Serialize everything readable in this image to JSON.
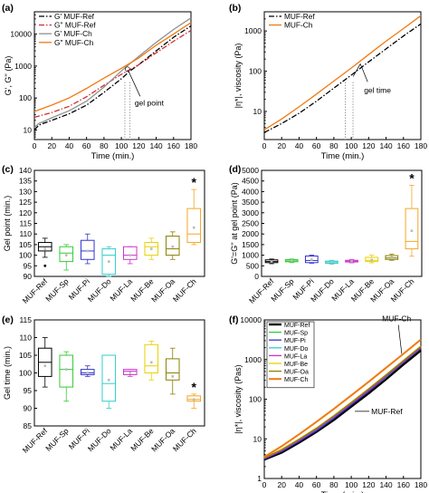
{
  "colors": {
    "ref": "#000000",
    "ref_dash": "#d03030",
    "ch": "#909090",
    "ch_orange": "#f07a10",
    "sp": "#33cc33",
    "pi": "#3333cc",
    "do": "#33cccc",
    "la": "#cc33cc",
    "be": "#e6d200",
    "oa": "#8b8000",
    "ch_box": "#f5a623"
  },
  "chart_data": [
    {
      "panel": "(a)",
      "type": "line",
      "log_y": true,
      "xlabel": "Time (min.)",
      "ylabel": "G', G'' (Pa)",
      "xlim": [
        0,
        180
      ],
      "ylim": [
        5,
        50000
      ],
      "xticks": [
        0,
        20,
        40,
        60,
        80,
        100,
        120,
        140,
        160,
        180
      ],
      "yticks": [
        {
          "v": 10,
          "label": "10"
        },
        {
          "v": 100,
          "label": "100"
        },
        {
          "v": 1000,
          "label": "1000"
        },
        {
          "v": 10000,
          "label": "10000"
        }
      ],
      "legend": "top-left",
      "annotation": "gel point",
      "vlines": [
        104,
        110
      ],
      "series": [
        {
          "name": "G' MUF-Ref",
          "style": "dashdot",
          "color": "#000000",
          "x": [
            0,
            5,
            10,
            20,
            40,
            60,
            80,
            100,
            110,
            120,
            140,
            160,
            180
          ],
          "y": [
            10,
            14,
            16,
            20,
            32,
            60,
            150,
            400,
            700,
            1100,
            3000,
            8000,
            18000
          ]
        },
        {
          "name": "G'' MUF-Ref",
          "style": "dashdot",
          "color": "#d03030",
          "x": [
            0,
            20,
            40,
            60,
            80,
            100,
            120,
            140,
            160,
            180
          ],
          "y": [
            25,
            35,
            55,
            110,
            250,
            550,
            1100,
            2600,
            6000,
            13000
          ]
        },
        {
          "name": "G' MUF-Ch",
          "style": "solid",
          "color": "#909090",
          "x": [
            0,
            5,
            10,
            20,
            40,
            60,
            80,
            100,
            110,
            120,
            140,
            160,
            180
          ],
          "y": [
            12,
            16,
            18,
            24,
            40,
            80,
            220,
            700,
            1200,
            2000,
            5500,
            14000,
            32000
          ]
        },
        {
          "name": "G'' MUF-Ch",
          "style": "solid",
          "color": "#f07a10",
          "x": [
            0,
            20,
            40,
            60,
            80,
            100,
            120,
            140,
            160,
            180
          ],
          "y": [
            38,
            60,
            100,
            200,
            420,
            850,
            1800,
            4500,
            10000,
            23000
          ]
        }
      ]
    },
    {
      "panel": "(b)",
      "type": "line",
      "log_y": true,
      "xlabel": "Time (min.)",
      "ylabel": "|η*|, viscosity (Pa)",
      "xlim": [
        0,
        180
      ],
      "ylim": [
        2,
        3000
      ],
      "xticks": [
        0,
        20,
        40,
        60,
        80,
        100,
        120,
        140,
        160,
        180
      ],
      "yticks": [
        {
          "v": 10,
          "label": "10"
        },
        {
          "v": 100,
          "label": "100"
        },
        {
          "v": 1000,
          "label": "1000"
        }
      ],
      "legend": "top-left",
      "annotation": "gel time",
      "vlines": [
        93,
        102
      ],
      "series": [
        {
          "name": "MUF-Ref",
          "style": "dashdot",
          "color": "#000000",
          "x": [
            0,
            20,
            40,
            60,
            80,
            100,
            120,
            140,
            160,
            180
          ],
          "y": [
            3,
            5,
            9,
            18,
            38,
            80,
            170,
            360,
            750,
            1500
          ]
        },
        {
          "name": "MUF-Ch",
          "style": "solid",
          "color": "#f07a10",
          "x": [
            0,
            20,
            40,
            60,
            80,
            100,
            120,
            140,
            160,
            180
          ],
          "y": [
            3.5,
            6.5,
            13,
            27,
            57,
            120,
            260,
            560,
            1150,
            2400
          ]
        }
      ]
    },
    {
      "panel": "(c)",
      "type": "box",
      "ylabel": "Gel point (min.)",
      "ylim": [
        90,
        140
      ],
      "yticks": [
        90,
        95,
        100,
        105,
        110,
        115,
        120,
        125,
        130,
        135,
        140
      ],
      "categories": [
        "MUF-Ref",
        "MUF-Sp",
        "MUF-Pi",
        "MUF-Do",
        "MUF-La",
        "MUF-Be",
        "MUF-Oa",
        "MUF-Ch"
      ],
      "colors": [
        "#000000",
        "#33cc33",
        "#3333cc",
        "#33cccc",
        "#cc33cc",
        "#e6d200",
        "#8b8000",
        "#f5a623"
      ],
      "boxes": [
        {
          "min": 99,
          "q1": 102,
          "median": 104,
          "q3": 106,
          "max": 108,
          "mean": 103,
          "outliers": [
            95
          ]
        },
        {
          "min": 93,
          "q1": 97,
          "median": 101,
          "q3": 104,
          "max": 105,
          "mean": 100,
          "outliers": []
        },
        {
          "min": 96,
          "q1": 98,
          "median": 102,
          "q3": 107,
          "max": 110,
          "mean": 102,
          "outliers": []
        },
        {
          "min": 90,
          "q1": 91,
          "median": 100,
          "q3": 103,
          "max": 104,
          "mean": 97,
          "outliers": []
        },
        {
          "min": 96,
          "q1": 98,
          "median": 100,
          "q3": 104,
          "max": 104,
          "mean": 100,
          "outliers": []
        },
        {
          "min": 98,
          "q1": 100,
          "median": 104,
          "q3": 106,
          "max": 108,
          "mean": 103,
          "outliers": []
        },
        {
          "min": 98,
          "q1": 100,
          "median": 103,
          "q3": 109,
          "max": 111,
          "mean": 104,
          "outliers": []
        },
        {
          "min": 105,
          "q1": 106,
          "median": 110,
          "q3": 122,
          "max": 131,
          "mean": 113,
          "outliers": []
        }
      ],
      "star_index": 7
    },
    {
      "panel": "(d)",
      "type": "box",
      "ylabel": "G'=G'' at gel point (Pa)",
      "ylim": [
        0,
        5000
      ],
      "yticks": [
        0,
        500,
        1000,
        1500,
        2000,
        2500,
        3000,
        3500,
        4000,
        4500,
        5000
      ],
      "categories": [
        "MUF-Ref",
        "MUF-Sp",
        "MUF-Pi",
        "MUF-Do",
        "MUF-La",
        "MUF-Be",
        "MUF-Oa",
        "MUF-Ch"
      ],
      "colors": [
        "#000000",
        "#33cc33",
        "#3333cc",
        "#33cccc",
        "#cc33cc",
        "#e6d200",
        "#8b8000",
        "#f5a623"
      ],
      "boxes": [
        {
          "min": 600,
          "q1": 650,
          "median": 700,
          "q3": 780,
          "max": 820,
          "mean": 700,
          "outliers": []
        },
        {
          "min": 650,
          "q1": 690,
          "median": 730,
          "q3": 790,
          "max": 820,
          "mean": 740,
          "outliers": []
        },
        {
          "min": 620,
          "q1": 650,
          "median": 750,
          "q3": 960,
          "max": 1000,
          "mean": 790,
          "outliers": []
        },
        {
          "min": 580,
          "q1": 620,
          "median": 680,
          "q3": 720,
          "max": 760,
          "mean": 680,
          "outliers": []
        },
        {
          "min": 640,
          "q1": 680,
          "median": 720,
          "q3": 760,
          "max": 800,
          "mean": 720,
          "outliers": []
        },
        {
          "min": 640,
          "q1": 700,
          "median": 760,
          "q3": 900,
          "max": 1000,
          "mean": 780,
          "outliers": []
        },
        {
          "min": 760,
          "q1": 800,
          "median": 870,
          "q3": 980,
          "max": 1050,
          "mean": 890,
          "outliers": []
        },
        {
          "min": 950,
          "q1": 1300,
          "median": 1650,
          "q3": 3200,
          "max": 4300,
          "mean": 2150,
          "outliers": []
        }
      ],
      "star_index": 7
    },
    {
      "panel": "(e)",
      "type": "box",
      "ylabel": "Gel time (min.)",
      "ylim": [
        85,
        115
      ],
      "yticks": [
        85,
        90,
        95,
        100,
        105,
        110,
        115
      ],
      "categories": [
        "MUF-Ref",
        "MUF-Sp",
        "MUF-Pi",
        "MUF-Do",
        "MUF-La",
        "MUF-Be",
        "MUF-Oa",
        "MUF-Ch"
      ],
      "colors": [
        "#000000",
        "#33cc33",
        "#3333cc",
        "#33cccc",
        "#cc33cc",
        "#e6d200",
        "#8b8000",
        "#f5a623"
      ],
      "boxes": [
        {
          "min": 96,
          "q1": 99,
          "median": 103,
          "q3": 107,
          "max": 110,
          "mean": 102,
          "outliers": []
        },
        {
          "min": 92,
          "q1": 96,
          "median": 101,
          "q3": 105,
          "max": 106,
          "mean": 101,
          "outliers": []
        },
        {
          "min": 99,
          "q1": 99.5,
          "median": 100,
          "q3": 101,
          "max": 102,
          "mean": 100,
          "outliers": []
        },
        {
          "min": 90,
          "q1": 92,
          "median": 97,
          "q3": 105,
          "max": 105,
          "mean": 98,
          "outliers": []
        },
        {
          "min": 99,
          "q1": 99.5,
          "median": 100.5,
          "q3": 101,
          "max": 101,
          "mean": 100,
          "outliers": []
        },
        {
          "min": 98,
          "q1": 100,
          "median": 102,
          "q3": 108,
          "max": 109,
          "mean": 103,
          "outliers": []
        },
        {
          "min": 94,
          "q1": 98,
          "median": 100,
          "q3": 104,
          "max": 107,
          "mean": 99,
          "outliers": []
        },
        {
          "min": 90,
          "q1": 92,
          "median": 92.5,
          "q3": 93.5,
          "max": 94,
          "mean": 92.5,
          "outliers": []
        }
      ],
      "star_index": 7
    },
    {
      "panel": "(f)",
      "type": "line",
      "log_y": true,
      "xlabel": "Time (min.)",
      "ylabel": "|η*|, viscosity (Pas)",
      "xlim": [
        0,
        180
      ],
      "ylim": [
        1,
        10000
      ],
      "xticks": [
        0,
        20,
        40,
        60,
        80,
        100,
        120,
        140,
        160,
        180
      ],
      "xticklabels": [
        "0",
        "20",
        "40",
        "60",
        "80",
        "100",
        "120",
        "140",
        "160",
        "180"
      ],
      "yticks": [
        {
          "v": 1,
          "label": "1"
        },
        {
          "v": 10,
          "label": "10"
        },
        {
          "v": 100,
          "label": "100"
        },
        {
          "v": 1000,
          "label": "1000"
        },
        {
          "v": 10000,
          "label": "10000"
        }
      ],
      "legend": "top-left",
      "labels": [
        "MUF-Ch",
        "MUF-Ref"
      ],
      "series": [
        {
          "name": "MUF-Ref",
          "color": "#000000",
          "width": 2.4,
          "x": [
            0,
            20,
            40,
            60,
            80,
            100,
            120,
            140,
            160,
            180
          ],
          "y": [
            3,
            4.5,
            8,
            15,
            30,
            65,
            140,
            320,
            750,
            1700
          ]
        },
        {
          "name": "MUF-Sp",
          "color": "#33cc33",
          "width": 1.3,
          "x": [
            0,
            20,
            40,
            60,
            80,
            100,
            120,
            140,
            160,
            180
          ],
          "y": [
            3.2,
            5,
            9,
            17,
            35,
            75,
            165,
            380,
            880,
            2000
          ]
        },
        {
          "name": "MUF-Pi",
          "color": "#3333cc",
          "width": 1.3,
          "x": [
            0,
            20,
            40,
            60,
            80,
            100,
            120,
            140,
            160,
            180
          ],
          "y": [
            3.1,
            4.8,
            8.6,
            16,
            33,
            72,
            160,
            370,
            860,
            1950
          ]
        },
        {
          "name": "MUF-Do",
          "color": "#33cccc",
          "width": 1.3,
          "x": [
            0,
            20,
            40,
            60,
            80,
            100,
            120,
            140,
            160,
            180
          ],
          "y": [
            3.3,
            5.2,
            9.5,
            18,
            37,
            80,
            175,
            400,
            920,
            2100
          ]
        },
        {
          "name": "MUF-La",
          "color": "#cc33cc",
          "width": 1.3,
          "x": [
            0,
            20,
            40,
            60,
            80,
            100,
            120,
            140,
            160,
            180
          ],
          "y": [
            3.2,
            5.1,
            9.2,
            17.5,
            36,
            78,
            170,
            390,
            900,
            2050
          ]
        },
        {
          "name": "MUF-Be",
          "color": "#e6d200",
          "width": 1.3,
          "x": [
            0,
            20,
            40,
            60,
            80,
            100,
            120,
            140,
            160,
            180
          ],
          "y": [
            3.4,
            5.5,
            10,
            19,
            39,
            84,
            185,
            420,
            960,
            2200
          ]
        },
        {
          "name": "MUF-Oa",
          "color": "#8b8000",
          "width": 1.3,
          "x": [
            0,
            20,
            40,
            60,
            80,
            100,
            120,
            140,
            160,
            180
          ],
          "y": [
            3.3,
            5.3,
            9.7,
            18.5,
            38,
            82,
            180,
            410,
            940,
            2150
          ]
        },
        {
          "name": "MUF-Ch",
          "color": "#f07a10",
          "width": 2.0,
          "x": [
            0,
            20,
            40,
            60,
            80,
            100,
            120,
            140,
            160,
            180
          ],
          "y": [
            3.5,
            6.5,
            13,
            27,
            57,
            125,
            275,
            620,
            1400,
            3200
          ]
        }
      ]
    }
  ],
  "panel_labels": [
    "(a)",
    "(b)",
    "(c)",
    "(d)",
    "(e)",
    "(f)"
  ]
}
